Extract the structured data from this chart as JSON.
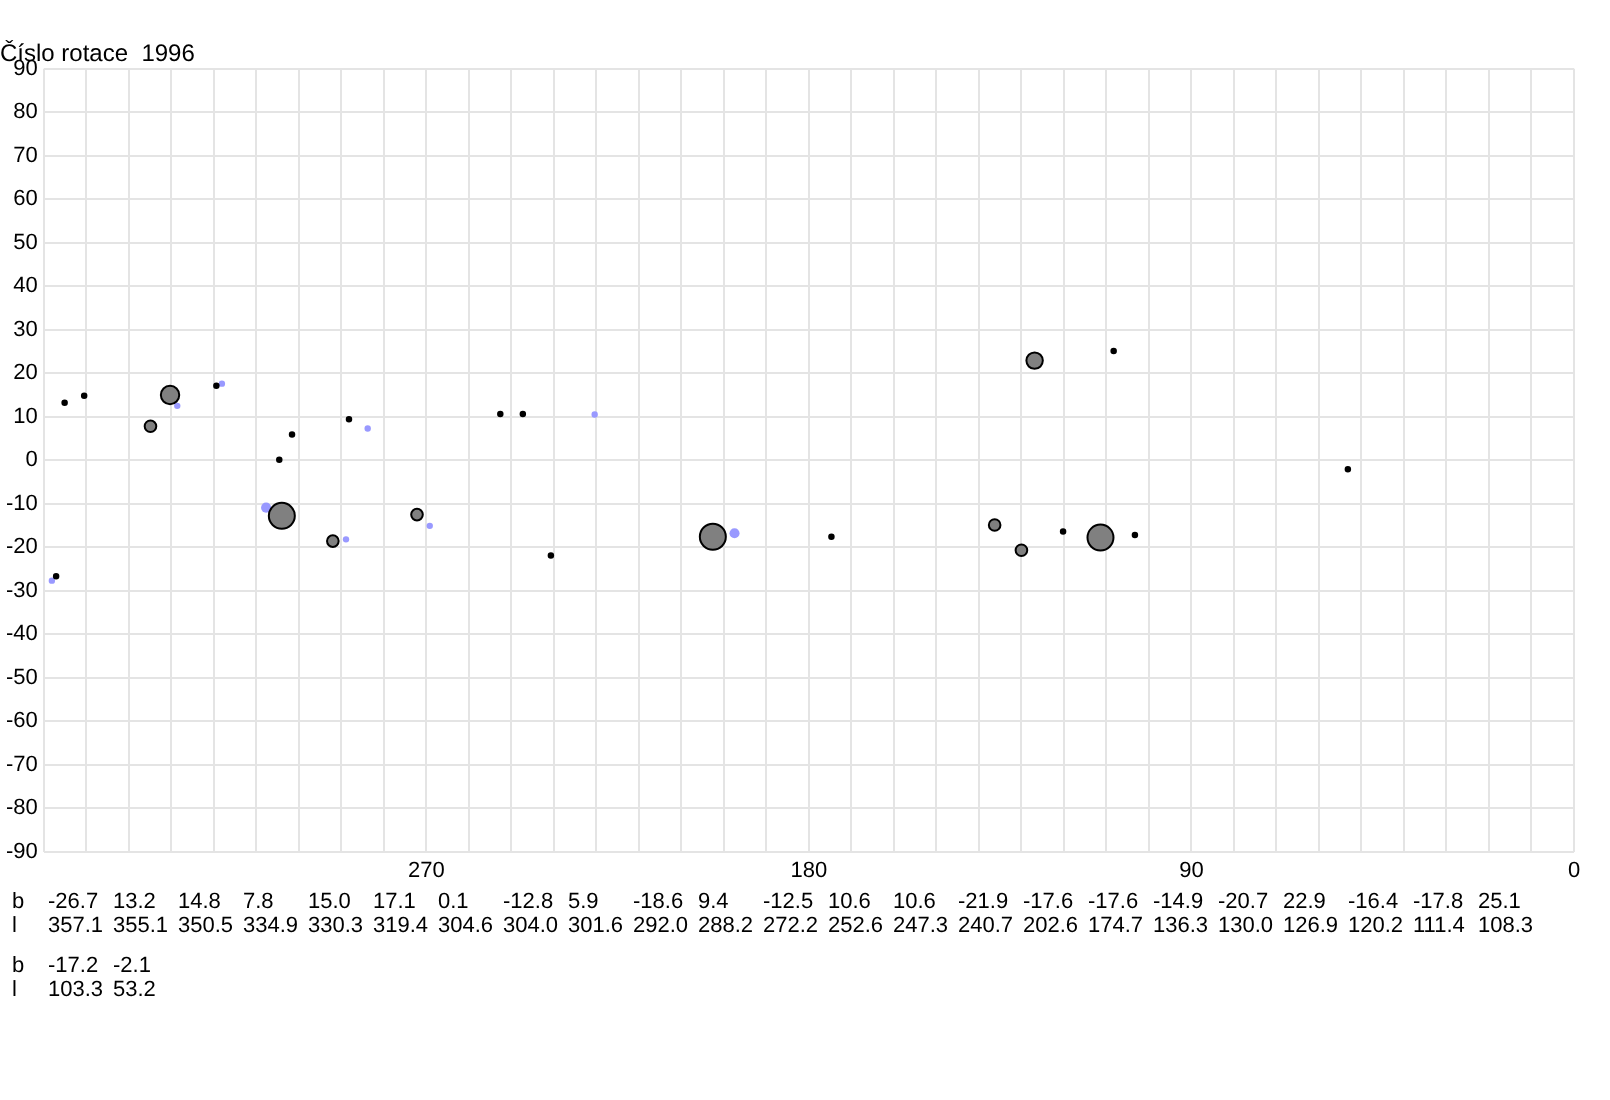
{
  "chart_data": {
    "type": "bubble",
    "title": "Číslo rotace  1996",
    "xlim": [
      360,
      0
    ],
    "xticks": [
      {
        "value": 360,
        "label": null
      },
      {
        "value": 350,
        "label": null
      },
      {
        "value": 340,
        "label": null
      },
      {
        "value": 330,
        "label": null
      },
      {
        "value": 320,
        "label": null
      },
      {
        "value": 310,
        "label": null
      },
      {
        "value": 300,
        "label": null
      },
      {
        "value": 290,
        "label": null
      },
      {
        "value": 280,
        "label": null
      },
      270,
      {
        "value": 260,
        "label": null
      },
      {
        "value": 250,
        "label": null
      },
      {
        "value": 240,
        "label": null
      },
      {
        "value": 230,
        "label": null
      },
      {
        "value": 220,
        "label": null
      },
      {
        "value": 210,
        "label": null
      },
      {
        "value": 200,
        "label": null
      },
      {
        "value": 190,
        "label": null
      },
      180,
      {
        "value": 170,
        "label": null
      },
      {
        "value": 160,
        "label": null
      },
      {
        "value": 150,
        "label": null
      },
      {
        "value": 140,
        "label": null
      },
      {
        "value": 130,
        "label": null
      },
      {
        "value": 120,
        "label": null
      },
      {
        "value": 110,
        "label": null
      },
      {
        "value": 100,
        "label": null
      },
      90,
      {
        "value": 80,
        "label": null
      },
      {
        "value": 70,
        "label": null
      },
      {
        "value": 60,
        "label": null
      },
      {
        "value": 50,
        "label": null
      },
      {
        "value": 40,
        "label": null
      },
      {
        "value": 30,
        "label": null
      },
      {
        "value": 20,
        "label": null
      },
      {
        "value": 10,
        "label": null
      },
      0
    ],
    "ylim": [
      -90,
      90
    ],
    "yticks": [
      -90,
      -80,
      -70,
      -60,
      -50,
      -40,
      -30,
      -20,
      -10,
      0,
      10,
      20,
      30,
      40,
      50,
      60,
      70,
      80,
      90
    ],
    "grid": true,
    "legend": false,
    "annotations": [
      "b",
      "l",
      "-26.7",
      "357.1",
      "13.2",
      "355.1",
      "14.8",
      "350.5",
      "7.8",
      "334.9",
      "15.0",
      "330.3",
      "17.1",
      "319.4",
      "0.1",
      "304.6",
      "-12.8",
      "304.0",
      "5.9",
      "301.6",
      "-18.6",
      "292.0",
      "9.4",
      "288.2",
      "-12.5",
      "272.2",
      "10.6",
      "252.6",
      "10.6",
      "247.3",
      "-21.9",
      "240.7",
      "-17.6",
      "202.6",
      "-17.6",
      "174.7",
      "-14.9",
      "136.3",
      "-20.7",
      "130.0",
      "22.9",
      "126.9",
      "-16.4",
      "120.2",
      "-17.8",
      "111.4",
      "25.1",
      "108.3",
      "-17.2",
      "103.3",
      "-2.1",
      "53.2"
    ],
    "series": [
      {
        "color": "#000000",
        "x": [
          357.1,
          355.1,
          350.5,
          334.9,
          330.3,
          319.4,
          304.6,
          304.0,
          301.6,
          292.0,
          288.2,
          272.2,
          252.6,
          247.3,
          240.7,
          202.6,
          174.7,
          136.3,
          130.0,
          126.9,
          120.2,
          111.4,
          108.3,
          103.3,
          53.2
        ],
        "values": [
          -26.7,
          13.2,
          14.8,
          7.8,
          15.0,
          17.1,
          0.1,
          -12.8,
          5.9,
          -18.6,
          9.4,
          -12.5,
          10.6,
          10.6,
          -21.9,
          -17.6,
          -17.6,
          -14.9,
          -20.7,
          22.9,
          -16.4,
          -17.8,
          25.1,
          -17.2,
          -2.1
        ],
        "sizes": [
          0.03,
          0.03,
          0.03,
          0.2,
          0.5,
          0.03,
          0.03,
          1,
          0.03,
          0.2,
          0.03,
          0.2,
          0.03,
          0.03,
          0.03,
          1,
          0.03,
          0.2,
          0.2,
          0.4,
          0.03,
          1,
          0.03,
          0.03,
          0.03
        ],
        "colors": [
          "#000000",
          "#000000",
          "#000000",
          "#808080",
          "#808080",
          "#000000",
          "#000000",
          "#808080",
          "#000000",
          "#808080",
          "#000000",
          "#808080",
          "#000000",
          "#000000",
          "#000000",
          "#808080",
          "#000000",
          "#808080",
          "#808080",
          "#808080",
          "#000000",
          "#808080",
          "#000000",
          "#000000",
          "#000000"
        ]
      },
      {
        "color": "#9999ff",
        "x": [
          358.1,
          328.6,
          318.1,
          307.7,
          288.9,
          283.8,
          269.2,
          230.4,
          197.5
        ],
        "values": [
          -27.7,
          12.5,
          17.6,
          -10.9,
          -18.2,
          7.3,
          -15.1,
          10.5,
          -16.8
        ],
        "sizes": [
          0.06,
          0.06,
          0.06,
          0.15,
          0.06,
          0.06,
          0.06,
          0.06,
          0.15
        ]
      }
    ]
  }
}
